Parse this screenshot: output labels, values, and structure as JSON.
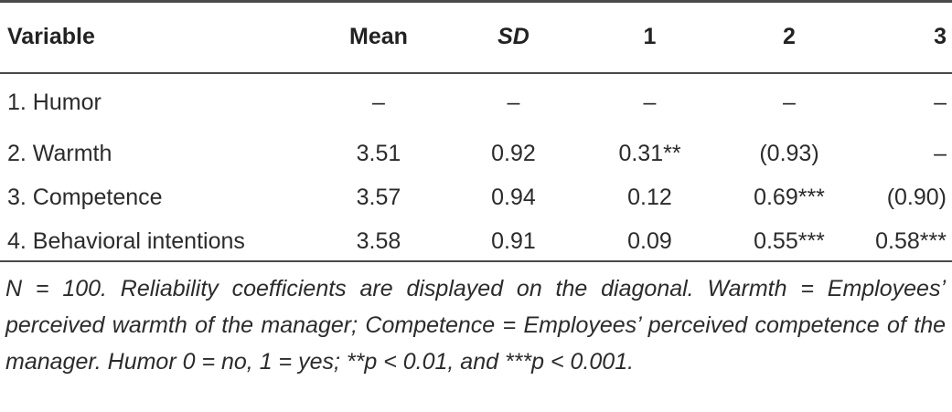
{
  "table": {
    "headers": [
      "Variable",
      "Mean",
      "SD",
      "1",
      "2",
      "3"
    ],
    "rows": [
      [
        "1. Humor",
        "–",
        "–",
        "–",
        "–",
        "–"
      ],
      [
        "2. Warmth",
        "3.51",
        "0.92",
        "0.31**",
        "(0.93)",
        "–"
      ],
      [
        "3. Competence",
        "3.57",
        "0.94",
        "0.12",
        "0.69***",
        "(0.90)"
      ],
      [
        "4. Behavioral intentions",
        "3.58",
        "0.91",
        "0.09",
        "0.55***",
        "0.58***"
      ]
    ]
  },
  "note": {
    "line1": "N = 100. Reliability coefficients are displayed on the diagonal.",
    "line2": "Warmth = Employees’ perceived warmth of the manager;",
    "line3": "Competence = Employees’ perceived competence of the manager. Humor",
    "line4": "0 = no, 1 = yes; **p < 0.01, and ***p < 0.001."
  }
}
